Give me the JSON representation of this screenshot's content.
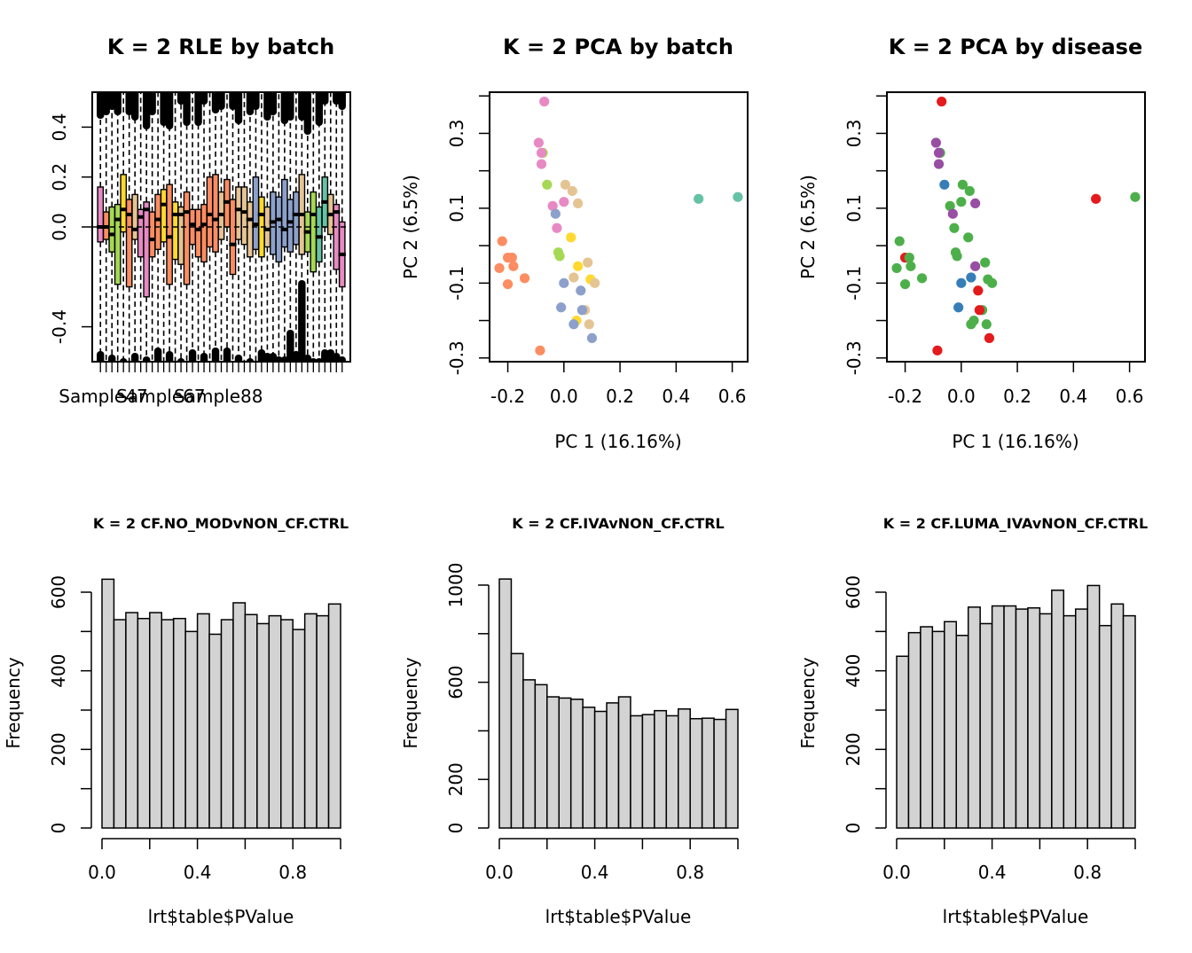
{
  "chart_data": [
    {
      "type": "box",
      "title": "K = 2 RLE by batch",
      "xlabel": "",
      "ylabel": "",
      "ylim": [
        -0.54,
        0.54
      ],
      "yticks": [
        -0.4,
        0.0,
        0.2,
        0.4
      ],
      "yticklabels": [
        "-0.4",
        "0.0",
        "0.2",
        "0.4"
      ],
      "xticklabels": [
        {
          "index": 1,
          "label": "Sample47"
        },
        {
          "index": 11,
          "label": "Sample67"
        },
        {
          "index": 21,
          "label": "Sample88"
        }
      ],
      "reference_line": 0,
      "boxes": [
        {
          "median": 0.0,
          "q1": -0.06,
          "q3": 0.16,
          "color": "#E78AC3"
        },
        {
          "median": 0.0,
          "q1": -0.05,
          "q3": 0.06,
          "color": "#FC8D62"
        },
        {
          "median": -0.03,
          "q1": -0.1,
          "q3": 0.08,
          "color": "#A6D854"
        },
        {
          "median": 0.03,
          "q1": -0.23,
          "q3": 0.09,
          "color": "#A6D854"
        },
        {
          "median": 0.07,
          "q1": -0.02,
          "q3": 0.21,
          "color": "#FFD92F"
        },
        {
          "median": 0.05,
          "q1": -0.24,
          "q3": 0.11,
          "color": "#FC8D62"
        },
        {
          "median": -0.01,
          "q1": -0.05,
          "q3": 0.13,
          "color": "#E5C494"
        },
        {
          "median": 0.04,
          "q1": -0.12,
          "q3": 0.07,
          "color": "#E78AC3"
        },
        {
          "median": 0.07,
          "q1": -0.28,
          "q3": 0.1,
          "color": "#E78AC3"
        },
        {
          "median": -0.05,
          "q1": -0.12,
          "q3": 0.06,
          "color": "#FC8D62"
        },
        {
          "median": 0.03,
          "q1": -0.09,
          "q3": 0.13,
          "color": "#FC8D62"
        },
        {
          "median": 0.09,
          "q1": -0.06,
          "q3": 0.15,
          "color": "#FFD92F"
        },
        {
          "median": -0.04,
          "q1": -0.23,
          "q3": 0.17,
          "color": "#FC8D62"
        },
        {
          "median": 0.05,
          "q1": -0.13,
          "q3": 0.1,
          "color": "#FFD92F"
        },
        {
          "median": 0.05,
          "q1": -0.15,
          "q3": 0.08,
          "color": "#E5C494"
        },
        {
          "median": 0.06,
          "q1": -0.23,
          "q3": 0.14,
          "color": "#FC8D62"
        },
        {
          "median": 0.01,
          "q1": -0.07,
          "q3": 0.07,
          "color": "#FC8D62"
        },
        {
          "median": -0.01,
          "q1": -0.12,
          "q3": 0.07,
          "color": "#FC8D62"
        },
        {
          "median": 0.01,
          "q1": -0.14,
          "q3": 0.09,
          "color": "#FC8D62"
        },
        {
          "median": 0.05,
          "q1": -0.08,
          "q3": 0.2,
          "color": "#FC8D62"
        },
        {
          "median": 0.03,
          "q1": -0.1,
          "q3": 0.21,
          "color": "#FC8D62"
        },
        {
          "median": 0.05,
          "q1": -0.05,
          "q3": 0.14,
          "color": "#E5C494"
        },
        {
          "median": 0.1,
          "q1": 0.0,
          "q3": 0.19,
          "color": "#FC8D62"
        },
        {
          "median": -0.07,
          "q1": -0.19,
          "q3": 0.11,
          "color": "#FC8D62"
        },
        {
          "median": 0.07,
          "q1": -0.05,
          "q3": 0.16,
          "color": "#E5C494"
        },
        {
          "median": 0.06,
          "q1": -0.07,
          "q3": 0.16,
          "color": "#E5C494"
        },
        {
          "median": 0.03,
          "q1": -0.12,
          "q3": 0.1,
          "color": "#E5C494"
        },
        {
          "median": 0.01,
          "q1": -0.09,
          "q3": 0.2,
          "color": "#8DA0CB"
        },
        {
          "median": 0.05,
          "q1": -0.12,
          "q3": 0.12,
          "color": "#FFD92F"
        },
        {
          "median": -0.01,
          "q1": -0.08,
          "q3": 0.08,
          "color": "#E5C494"
        },
        {
          "median": 0.02,
          "q1": -0.11,
          "q3": 0.14,
          "color": "#8DA0CB"
        },
        {
          "median": 0.03,
          "q1": -0.14,
          "q3": 0.12,
          "color": "#8DA0CB"
        },
        {
          "median": -0.01,
          "q1": -0.08,
          "q3": 0.19,
          "color": "#8DA0CB"
        },
        {
          "median": 0.02,
          "q1": -0.1,
          "q3": 0.11,
          "color": "#8DA0CB"
        },
        {
          "median": 0.05,
          "q1": -0.07,
          "q3": 0.14,
          "color": "#8DA0CB"
        },
        {
          "median": 0.05,
          "q1": -0.11,
          "q3": 0.21,
          "color": "#E5C494"
        },
        {
          "median": -0.02,
          "q1": -0.1,
          "q3": 0.06,
          "color": "#A6D854"
        },
        {
          "median": 0.05,
          "q1": -0.18,
          "q3": 0.14,
          "color": "#A6D854"
        },
        {
          "median": -0.04,
          "q1": -0.14,
          "q3": 0.08,
          "color": "#66C2A5"
        },
        {
          "median": 0.1,
          "q1": 0.0,
          "q3": 0.2,
          "color": "#66C2A5"
        },
        {
          "median": 0.05,
          "q1": -0.03,
          "q3": 0.13,
          "color": "#E5C494"
        },
        {
          "median": 0.06,
          "q1": -0.17,
          "q3": 0.09,
          "color": "#E78AC3"
        },
        {
          "median": -0.11,
          "q1": -0.24,
          "q3": 0.02,
          "color": "#E78AC3"
        }
      ]
    },
    {
      "type": "scatter",
      "title": "K = 2 PCA by batch",
      "xlabel": "PC 1 (16.16%)",
      "ylabel": "PC 2 (6.5%)",
      "xlim": [
        -0.265,
        0.655
      ],
      "ylim": [
        -0.31,
        0.41
      ],
      "xticks": [
        -0.2,
        0.0,
        0.2,
        0.4,
        0.6
      ],
      "xticklabels": [
        "-0.2",
        "0.0",
        "0.2",
        "0.4",
        "0.6"
      ],
      "yticks": [
        -0.3,
        -0.2,
        -0.1,
        0.0,
        0.1,
        0.2,
        0.3,
        0.4
      ],
      "yticklabels": [
        "-0.3",
        "",
        "-0.1",
        "",
        "0.1",
        "",
        "0.3",
        ""
      ],
      "points": [
        {
          "x": -0.07,
          "y": 0.385,
          "color": "#E78AC3"
        },
        {
          "x": -0.09,
          "y": 0.275,
          "color": "#E78AC3"
        },
        {
          "x": -0.075,
          "y": 0.248,
          "color": "#A6D854"
        },
        {
          "x": -0.08,
          "y": 0.248,
          "color": "#E78AC3"
        },
        {
          "x": -0.08,
          "y": 0.218,
          "color": "#E78AC3"
        },
        {
          "x": -0.06,
          "y": 0.163,
          "color": "#A6D854"
        },
        {
          "x": 0.005,
          "y": 0.163,
          "color": "#E5C494"
        },
        {
          "x": 0.03,
          "y": 0.146,
          "color": "#E5C494"
        },
        {
          "x": 0.0,
          "y": 0.117,
          "color": "#E78AC3"
        },
        {
          "x": 0.05,
          "y": 0.113,
          "color": "#E5C494"
        },
        {
          "x": -0.04,
          "y": 0.106,
          "color": "#E78AC3"
        },
        {
          "x": -0.03,
          "y": 0.085,
          "color": "#8DA0CB"
        },
        {
          "x": -0.025,
          "y": 0.047,
          "color": "#E78AC3"
        },
        {
          "x": 0.025,
          "y": 0.022,
          "color": "#FFD92F"
        },
        {
          "x": -0.22,
          "y": 0.012,
          "color": "#FC8D62"
        },
        {
          "x": -0.02,
          "y": -0.018,
          "color": "#A6D854"
        },
        {
          "x": -0.015,
          "y": -0.028,
          "color": "#A6D854"
        },
        {
          "x": -0.2,
          "y": -0.032,
          "color": "#FC8D62"
        },
        {
          "x": -0.185,
          "y": -0.032,
          "color": "#FC8D62"
        },
        {
          "x": 0.085,
          "y": -0.045,
          "color": "#E5C494"
        },
        {
          "x": 0.05,
          "y": -0.055,
          "color": "#FFD92F"
        },
        {
          "x": -0.18,
          "y": -0.055,
          "color": "#FC8D62"
        },
        {
          "x": -0.23,
          "y": -0.06,
          "color": "#FC8D62"
        },
        {
          "x": 0.035,
          "y": -0.085,
          "color": "#E5C494"
        },
        {
          "x": 0.095,
          "y": -0.09,
          "color": "#FFD92F"
        },
        {
          "x": -0.14,
          "y": -0.087,
          "color": "#FC8D62"
        },
        {
          "x": 0.11,
          "y": -0.1,
          "color": "#E5C494"
        },
        {
          "x": 0.0,
          "y": -0.1,
          "color": "#8DA0CB"
        },
        {
          "x": -0.2,
          "y": -0.103,
          "color": "#FC8D62"
        },
        {
          "x": 0.06,
          "y": -0.12,
          "color": "#8DA0CB"
        },
        {
          "x": -0.01,
          "y": -0.165,
          "color": "#8DA0CB"
        },
        {
          "x": 0.075,
          "y": -0.172,
          "color": "#E5C494"
        },
        {
          "x": 0.065,
          "y": -0.172,
          "color": "#8DA0CB"
        },
        {
          "x": 0.045,
          "y": -0.2,
          "color": "#FFD92F"
        },
        {
          "x": 0.035,
          "y": -0.21,
          "color": "#8DA0CB"
        },
        {
          "x": 0.09,
          "y": -0.21,
          "color": "#E5C494"
        },
        {
          "x": 0.1,
          "y": -0.247,
          "color": "#8DA0CB"
        },
        {
          "x": -0.085,
          "y": -0.28,
          "color": "#FC8D62"
        },
        {
          "x": 0.48,
          "y": 0.125,
          "color": "#66C2A5"
        },
        {
          "x": 0.62,
          "y": 0.13,
          "color": "#66C2A5"
        }
      ]
    },
    {
      "type": "scatter",
      "title": "K = 2 PCA by disease",
      "xlabel": "PC 1 (16.16%)",
      "ylabel": "PC 2 (6.5%)",
      "xlim": [
        -0.265,
        0.655
      ],
      "ylim": [
        -0.31,
        0.41
      ],
      "xticks": [
        -0.2,
        0.0,
        0.2,
        0.4,
        0.6
      ],
      "xticklabels": [
        "-0.2",
        "0.0",
        "0.2",
        "0.4",
        "0.6"
      ],
      "yticks": [
        -0.3,
        -0.2,
        -0.1,
        0.0,
        0.1,
        0.2,
        0.3,
        0.4
      ],
      "yticklabels": [
        "-0.3",
        "",
        "-0.1",
        "",
        "0.1",
        "",
        "0.3",
        ""
      ],
      "points": [
        {
          "x": -0.07,
          "y": 0.385,
          "color": "#E41A1C"
        },
        {
          "x": -0.09,
          "y": 0.275,
          "color": "#984EA3"
        },
        {
          "x": -0.075,
          "y": 0.248,
          "color": "#4DAF4A"
        },
        {
          "x": -0.08,
          "y": 0.248,
          "color": "#984EA3"
        },
        {
          "x": -0.08,
          "y": 0.218,
          "color": "#984EA3"
        },
        {
          "x": -0.06,
          "y": 0.163,
          "color": "#377EB8"
        },
        {
          "x": 0.005,
          "y": 0.163,
          "color": "#4DAF4A"
        },
        {
          "x": 0.03,
          "y": 0.146,
          "color": "#4DAF4A"
        },
        {
          "x": 0.0,
          "y": 0.117,
          "color": "#4DAF4A"
        },
        {
          "x": 0.05,
          "y": 0.113,
          "color": "#984EA3"
        },
        {
          "x": -0.04,
          "y": 0.106,
          "color": "#4DAF4A"
        },
        {
          "x": -0.03,
          "y": 0.085,
          "color": "#984EA3"
        },
        {
          "x": -0.025,
          "y": 0.047,
          "color": "#4DAF4A"
        },
        {
          "x": 0.025,
          "y": 0.022,
          "color": "#4DAF4A"
        },
        {
          "x": -0.22,
          "y": 0.012,
          "color": "#4DAF4A"
        },
        {
          "x": -0.02,
          "y": -0.018,
          "color": "#4DAF4A"
        },
        {
          "x": -0.015,
          "y": -0.028,
          "color": "#4DAF4A"
        },
        {
          "x": -0.2,
          "y": -0.032,
          "color": "#E41A1C"
        },
        {
          "x": -0.185,
          "y": -0.032,
          "color": "#4DAF4A"
        },
        {
          "x": 0.085,
          "y": -0.045,
          "color": "#4DAF4A"
        },
        {
          "x": 0.05,
          "y": -0.055,
          "color": "#984EA3"
        },
        {
          "x": -0.18,
          "y": -0.055,
          "color": "#4DAF4A"
        },
        {
          "x": -0.23,
          "y": -0.06,
          "color": "#4DAF4A"
        },
        {
          "x": 0.035,
          "y": -0.085,
          "color": "#377EB8"
        },
        {
          "x": 0.095,
          "y": -0.09,
          "color": "#4DAF4A"
        },
        {
          "x": -0.14,
          "y": -0.087,
          "color": "#4DAF4A"
        },
        {
          "x": 0.11,
          "y": -0.1,
          "color": "#4DAF4A"
        },
        {
          "x": 0.0,
          "y": -0.1,
          "color": "#377EB8"
        },
        {
          "x": -0.2,
          "y": -0.103,
          "color": "#4DAF4A"
        },
        {
          "x": 0.06,
          "y": -0.12,
          "color": "#E41A1C"
        },
        {
          "x": -0.01,
          "y": -0.165,
          "color": "#377EB8"
        },
        {
          "x": 0.075,
          "y": -0.172,
          "color": "#4DAF4A"
        },
        {
          "x": 0.065,
          "y": -0.172,
          "color": "#E41A1C"
        },
        {
          "x": 0.045,
          "y": -0.2,
          "color": "#4DAF4A"
        },
        {
          "x": 0.035,
          "y": -0.21,
          "color": "#4DAF4A"
        },
        {
          "x": 0.09,
          "y": -0.21,
          "color": "#4DAF4A"
        },
        {
          "x": 0.1,
          "y": -0.247,
          "color": "#E41A1C"
        },
        {
          "x": -0.085,
          "y": -0.28,
          "color": "#E41A1C"
        },
        {
          "x": 0.48,
          "y": 0.125,
          "color": "#E41A1C"
        },
        {
          "x": 0.62,
          "y": 0.13,
          "color": "#4DAF4A"
        }
      ]
    },
    {
      "type": "histogram",
      "title": "K = 2 CF.NO_MODvNON_CF.CTRL",
      "xlabel": "lrt$table$PValue",
      "ylabel": "Frequency",
      "bin_width": 0.05,
      "xlim": [
        0,
        1
      ],
      "ylim": [
        0,
        650
      ],
      "xticks": [
        0,
        0.2,
        0.4,
        0.6,
        0.8,
        1.0
      ],
      "xticklabels": [
        "0.0",
        "",
        "0.4",
        "",
        "0.8",
        ""
      ],
      "yticks": [
        0,
        100,
        200,
        300,
        400,
        500,
        600
      ],
      "yticklabels": [
        "0",
        "",
        "200",
        "",
        "400",
        "",
        "600"
      ],
      "values": [
        633,
        530,
        548,
        533,
        548,
        530,
        533,
        500,
        545,
        493,
        530,
        573,
        543,
        520,
        540,
        530,
        505,
        545,
        540,
        570
      ]
    },
    {
      "type": "histogram",
      "title": "K = 2 CF.IVAvNON_CF.CTRL",
      "xlabel": "lrt$table$PValue",
      "ylabel": "Frequency",
      "bin_width": 0.05,
      "xlim": [
        0,
        1
      ],
      "ylim": [
        0,
        1050
      ],
      "xticks": [
        0,
        0.2,
        0.4,
        0.6,
        0.8,
        1.0
      ],
      "xticklabels": [
        "0.0",
        "",
        "0.4",
        "",
        "0.8",
        ""
      ],
      "yticks": [
        0,
        200,
        400,
        600,
        800,
        1000
      ],
      "yticklabels": [
        "0",
        "200",
        "",
        "600",
        "",
        "1000"
      ],
      "values": [
        1025,
        718,
        610,
        590,
        540,
        535,
        530,
        497,
        480,
        515,
        540,
        462,
        467,
        483,
        462,
        490,
        450,
        452,
        447,
        488
      ]
    },
    {
      "type": "histogram",
      "title": "K = 2 CF.LUMA_IVAvNON_CF.CTRL",
      "xlabel": "lrt$table$PValue",
      "ylabel": "Frequency",
      "bin_width": 0.05,
      "xlim": [
        0,
        1
      ],
      "ylim": [
        0,
        650
      ],
      "xticks": [
        0,
        0.2,
        0.4,
        0.6,
        0.8,
        1.0
      ],
      "xticklabels": [
        "0.0",
        "",
        "0.4",
        "",
        "0.8",
        ""
      ],
      "yticks": [
        0,
        100,
        200,
        300,
        400,
        500,
        600
      ],
      "yticklabels": [
        "0",
        "",
        "200",
        "",
        "400",
        "",
        "600"
      ],
      "values": [
        437,
        497,
        512,
        500,
        525,
        490,
        562,
        520,
        565,
        565,
        557,
        560,
        545,
        605,
        540,
        557,
        617,
        515,
        570,
        540
      ]
    }
  ]
}
